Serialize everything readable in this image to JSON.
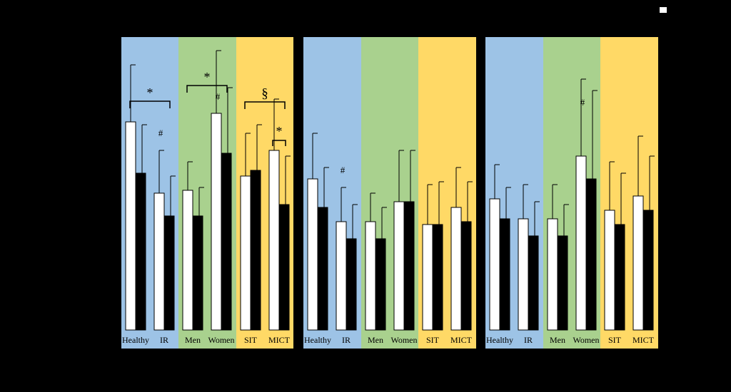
{
  "colors": {
    "background": "#000000",
    "white_bar": "#ffffff",
    "black_bar": "#000000",
    "error_bar": "#000000",
    "group_backgrounds": [
      "#9dc3e6",
      "#a9d18e",
      "#ffd966"
    ]
  },
  "legend": {
    "swatch_color": "#ffffff",
    "placement": "top-right"
  },
  "chart_data": [
    {
      "type": "bar",
      "panel": 1,
      "categories": [
        "Healthy",
        "IR",
        "Men",
        "Women",
        "SIT",
        "MICT"
      ],
      "category_groups": [
        [
          "Healthy",
          "IR"
        ],
        [
          "Men",
          "Women"
        ],
        [
          "SIT",
          "MICT"
        ]
      ],
      "ylim": [
        0,
        10
      ],
      "series": [
        {
          "color": "#ffffff",
          "values": [
            7.3,
            4.8,
            4.9,
            7.6,
            5.4,
            6.3
          ],
          "errors": [
            2.0,
            1.5,
            1.0,
            2.2,
            1.5,
            1.8
          ]
        },
        {
          "color": "#000000",
          "values": [
            5.5,
            4.0,
            4.0,
            6.2,
            5.6,
            4.4
          ],
          "errors": [
            1.7,
            1.4,
            1.0,
            2.3,
            1.6,
            1.7
          ]
        }
      ],
      "annotations": [
        {
          "text": "*",
          "type": "bracket",
          "from": "Healthy",
          "to": "IR"
        },
        {
          "text": "#",
          "type": "label",
          "at": "IR"
        },
        {
          "text": "*",
          "type": "bracket",
          "from": "Men",
          "to": "Women"
        },
        {
          "text": "#",
          "type": "label",
          "at": "Women"
        },
        {
          "text": "§",
          "type": "bracket",
          "from": "SIT",
          "to": "MICT"
        },
        {
          "text": "*",
          "type": "pair-bracket",
          "at": "MICT"
        }
      ]
    },
    {
      "type": "bar",
      "panel": 2,
      "categories": [
        "Healthy",
        "IR",
        "Men",
        "Women",
        "SIT",
        "MICT"
      ],
      "category_groups": [
        [
          "Healthy",
          "IR"
        ],
        [
          "Men",
          "Women"
        ],
        [
          "SIT",
          "MICT"
        ]
      ],
      "ylim": [
        0,
        10
      ],
      "series": [
        {
          "color": "#ffffff",
          "values": [
            5.3,
            3.8,
            3.8,
            4.5,
            3.7,
            4.3
          ],
          "errors": [
            1.6,
            1.2,
            1.0,
            1.8,
            1.4,
            1.4
          ]
        },
        {
          "color": "#000000",
          "values": [
            4.3,
            3.2,
            3.2,
            4.5,
            3.7,
            3.8
          ],
          "errors": [
            1.4,
            1.2,
            1.1,
            1.8,
            1.5,
            1.4
          ]
        }
      ],
      "annotations": [
        {
          "text": "#",
          "type": "label",
          "at": "IR"
        }
      ]
    },
    {
      "type": "bar",
      "panel": 3,
      "categories": [
        "Healthy",
        "IR",
        "Men",
        "Women",
        "SIT",
        "MICT"
      ],
      "category_groups": [
        [
          "Healthy",
          "IR"
        ],
        [
          "Men",
          "Women"
        ],
        [
          "SIT",
          "MICT"
        ]
      ],
      "ylim": [
        0,
        10
      ],
      "series": [
        {
          "color": "#ffffff",
          "values": [
            4.6,
            3.9,
            3.9,
            6.1,
            4.2,
            4.7
          ],
          "errors": [
            1.2,
            1.2,
            1.2,
            2.7,
            1.7,
            2.1
          ]
        },
        {
          "color": "#000000",
          "values": [
            3.9,
            3.3,
            3.3,
            5.3,
            3.7,
            4.2
          ],
          "errors": [
            1.1,
            1.2,
            1.1,
            3.1,
            1.8,
            1.9
          ]
        }
      ],
      "annotations": [
        {
          "text": "#",
          "type": "label",
          "at": "Women"
        }
      ]
    }
  ]
}
